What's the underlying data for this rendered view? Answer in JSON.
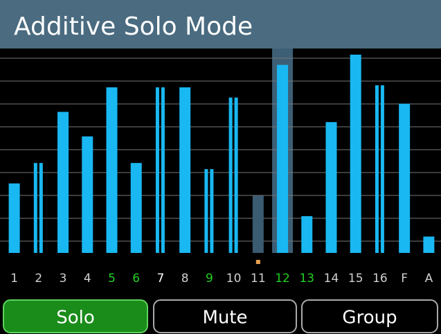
{
  "header": {
    "title": "Additive Solo Mode"
  },
  "meter": {
    "ylim": [
      0,
      100
    ],
    "bar_color": "#19b8f2",
    "muted_color": "#3b5b70",
    "selected": 11,
    "marker": 10,
    "channels": [
      {
        "label": "1",
        "level": 34,
        "stereo": false,
        "label_color": "#d0d0d0"
      },
      {
        "label": "2",
        "level": 44,
        "stereo": true,
        "label_color": "#d0d0d0"
      },
      {
        "label": "3",
        "level": 69,
        "stereo": false,
        "label_color": "#d0d0d0"
      },
      {
        "label": "4",
        "level": 57,
        "stereo": false,
        "label_color": "#d0d0d0"
      },
      {
        "label": "5",
        "level": 81,
        "stereo": false,
        "label_color": "#22d022"
      },
      {
        "label": "6",
        "level": 44,
        "stereo": false,
        "label_color": "#22d022"
      },
      {
        "label": "7",
        "level": 81,
        "stereo": true,
        "label_color": "#ffffff"
      },
      {
        "label": "8",
        "level": 81,
        "stereo": false,
        "label_color": "#d0d0d0"
      },
      {
        "label": "9",
        "level": 41,
        "stereo": true,
        "label_color": "#22d022"
      },
      {
        "label": "10",
        "level": 76,
        "stereo": true,
        "label_color": "#d0d0d0"
      },
      {
        "label": "11",
        "level": 28,
        "stereo": false,
        "muted": true,
        "label_color": "#d0d0d0"
      },
      {
        "label": "12",
        "level": 92,
        "stereo": false,
        "label_color": "#22d022"
      },
      {
        "label": "13",
        "level": 18,
        "stereo": false,
        "label_color": "#22d022"
      },
      {
        "label": "14",
        "level": 64,
        "stereo": false,
        "label_color": "#d0d0d0"
      },
      {
        "label": "15",
        "level": 97,
        "stereo": false,
        "label_color": "#d0d0d0"
      },
      {
        "label": "16",
        "level": 82,
        "stereo": true,
        "label_color": "#d0d0d0"
      },
      {
        "label": "F",
        "level": 73,
        "stereo": false,
        "label_color": "#d0d0d0"
      },
      {
        "label": "A",
        "level": 8,
        "stereo": false,
        "label_color": "#d0d0d0"
      }
    ]
  },
  "buttons": [
    {
      "label": "Solo",
      "active": true
    },
    {
      "label": "Mute",
      "active": false
    },
    {
      "label": "Group",
      "active": false
    }
  ]
}
